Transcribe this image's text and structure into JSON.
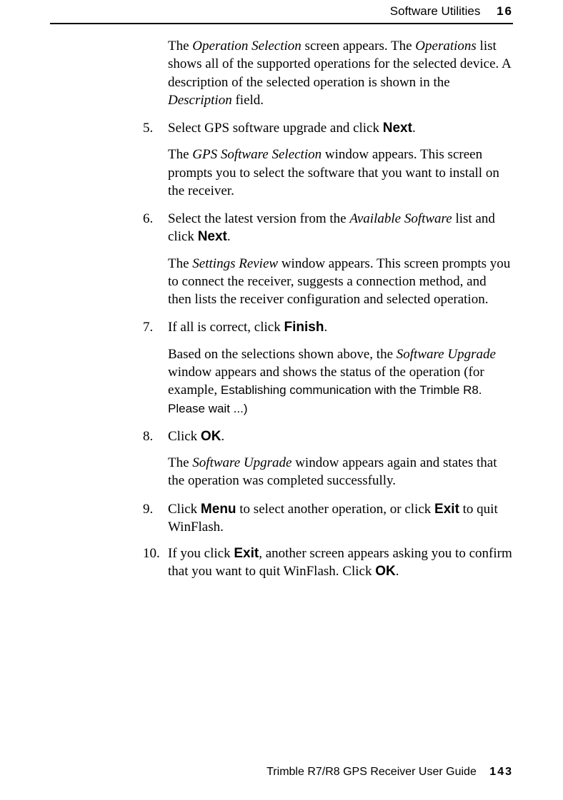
{
  "header": {
    "section_title": "Software Utilities",
    "chapter_number": "16"
  },
  "intro": {
    "t1": "The ",
    "i1": "Operation Selection",
    "t2": " screen appears. The ",
    "i2": "Operations",
    "t3": " list shows all of the supported operations for the selected device. A description of the selected operation is shown in the ",
    "i3": "Description",
    "t4": " field."
  },
  "steps": {
    "s5": {
      "num": "5.",
      "t1": "Select GPS software upgrade and click ",
      "b1": "Next",
      "t2": "."
    },
    "s5sub": {
      "t1": "The ",
      "i1": "GPS Software Selection",
      "t2": " window appears. This screen prompts you to select the software that you want to install on the receiver."
    },
    "s6": {
      "num": "6.",
      "t1": "Select the latest version from the ",
      "i1": "Available Software",
      "t2": " list and click ",
      "b1": "Next",
      "t3": "."
    },
    "s6sub": {
      "t1": "The ",
      "i1": "Settings Review",
      "t2": " window appears. This screen prompts you to connect the receiver, suggests a connection method, and then lists the receiver configuration and selected operation."
    },
    "s7": {
      "num": "7.",
      "t1": "If all is correct, click ",
      "b1": "Finish",
      "t2": "."
    },
    "s7sub": {
      "t1": "Based on the selections shown above, the ",
      "i1": "Software Upgrade",
      "t2": " window appears and shows the status of the operation (for example, ",
      "s1": "Establishing communication with the Trimble R8. Please wait ...)"
    },
    "s8": {
      "num": "8.",
      "t1": "Click ",
      "b1": "OK",
      "t2": "."
    },
    "s8sub": {
      "t1": "The ",
      "i1": "Software Upgrade",
      "t2": " window appears again and states that the operation was completed successfully."
    },
    "s9": {
      "num": "9.",
      "t1": "Click ",
      "b1": "Menu",
      "t2": " to select another operation, or click ",
      "b2": "Exit",
      "t3": " to quit WinFlash."
    },
    "s10": {
      "num": "10.",
      "t1": "If you click ",
      "b1": "Exit",
      "t2": ", another screen appears asking you to confirm that you want to quit WinFlash. Click ",
      "b2": "OK",
      "t3": "."
    }
  },
  "footer": {
    "guide": "Trimble R7/R8 GPS Receiver User Guide",
    "page": "143"
  }
}
